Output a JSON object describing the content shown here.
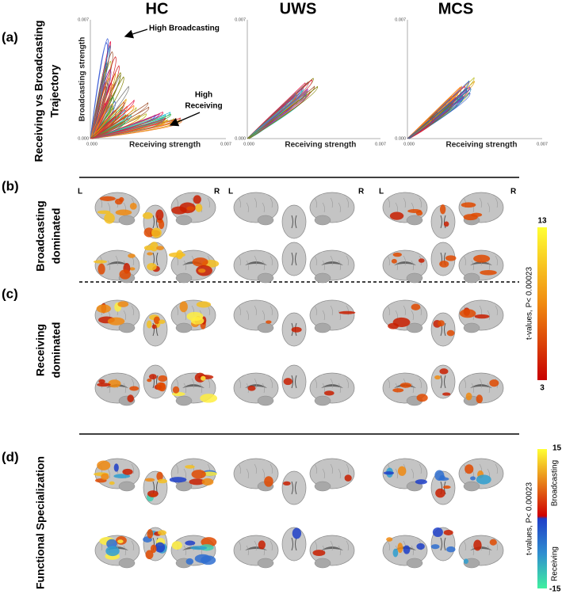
{
  "column_headers": [
    "HC",
    "UWS",
    "MCS"
  ],
  "panel_a": {
    "label": "(a)",
    "row_title": [
      "Receiving vs Broadcasting",
      "Trajectory"
    ],
    "x_label": "Receiving strength",
    "y_label": "Broadcasting strength",
    "tick_min": "0.000",
    "tick_max": "0.007",
    "annotations": {
      "high_broadcasting": "High Broadcasting",
      "high_receiving": [
        "High",
        "Receiving"
      ]
    }
  },
  "panel_b": {
    "label": "(b)",
    "row_title": [
      "Broadcasting",
      "dominated"
    ],
    "hemispheres": [
      "L",
      "R"
    ]
  },
  "panel_c": {
    "label": "(c)",
    "row_title": [
      "Receiving",
      "dominated"
    ]
  },
  "panel_d": {
    "label": "(d)",
    "row_title": [
      "Functional Specialization"
    ]
  },
  "colorbar_dominance": {
    "max": "13",
    "min": "3",
    "label": "t-values, P< 0.00023"
  },
  "colorbar_specialization": {
    "max": "15",
    "min": "-15",
    "label": "t-values, P< 0.00023",
    "top_label": "Broadcasting",
    "bottom_label": "Receiving"
  }
}
